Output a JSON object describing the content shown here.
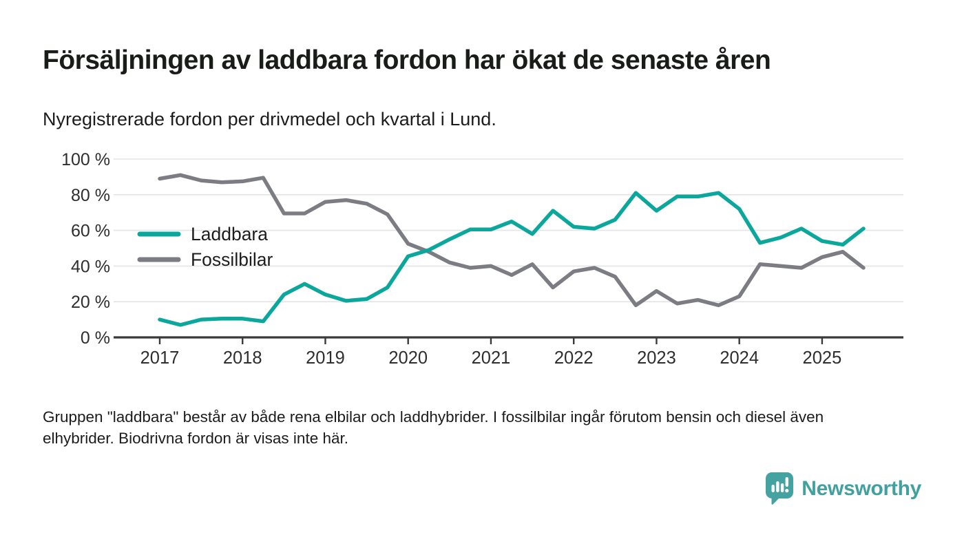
{
  "header": {
    "title": "Försäljningen av laddbara fordon har ökat de senaste åren",
    "subtitle": "Nyregistrerade fordon per drivmedel och kvartal i Lund."
  },
  "footer": {
    "note": "Gruppen \"laddbara\" består av både rena elbilar och laddhybrider. I fossilbilar ingår förutom bensin och diesel även elhybrider. Biodrivna fordon är visas inte här."
  },
  "branding": {
    "logo_text": "Newsworthy",
    "logo_icon": "bar-chart-speech-bubble-icon",
    "brand_color": "#44a2a0"
  },
  "chart_data": {
    "type": "line",
    "title": "Nyregistrerade fordon per drivmedel och kvartal i Lund",
    "x_unit": "kvartal",
    "y_unit": "%",
    "ylim": [
      0,
      100
    ],
    "grid": true,
    "legend_position": "inside-left",
    "colors": {
      "grid": "#e4e4e4",
      "axis": "#3a3a3a",
      "tick_text": "#2e2e2e",
      "legend_text": "#1d1d1d"
    },
    "yticks": [
      0,
      20,
      40,
      60,
      80,
      100
    ],
    "y_tick_labels": [
      "0 %",
      "20 %",
      "40 %",
      "60 %",
      "80 %",
      "100 %"
    ],
    "x_tick_labels": [
      "2017",
      "2018",
      "2019",
      "2020",
      "2021",
      "2022",
      "2023",
      "2024",
      "2025"
    ],
    "quarters": [
      "2017 Q1",
      "2017 Q2",
      "2017 Q3",
      "2017 Q4",
      "2018 Q1",
      "2018 Q2",
      "2018 Q3",
      "2018 Q4",
      "2019 Q1",
      "2019 Q2",
      "2019 Q3",
      "2019 Q4",
      "2020 Q1",
      "2020 Q2",
      "2020 Q3",
      "2020 Q4",
      "2021 Q1",
      "2021 Q2",
      "2021 Q3",
      "2021 Q4",
      "2022 Q1",
      "2022 Q2",
      "2022 Q3",
      "2022 Q4",
      "2023 Q1",
      "2023 Q2",
      "2023 Q3",
      "2023 Q4",
      "2024 Q1",
      "2024 Q2",
      "2024 Q3",
      "2024 Q4",
      "2025 Q1",
      "2025 Q2",
      "2025 Q3"
    ],
    "series": [
      {
        "name": "Laddbara",
        "color": "#0ca79c",
        "values": [
          10,
          7,
          10,
          10.5,
          10.5,
          9,
          24,
          30,
          24,
          20.5,
          21.5,
          28,
          45.5,
          49,
          55,
          60.5,
          60.5,
          65,
          58,
          71,
          62,
          61,
          66,
          81,
          71,
          79,
          79,
          81,
          72,
          53,
          56,
          61,
          54,
          52,
          61
        ]
      },
      {
        "name": "Fossilbilar",
        "color": "#7c7c83",
        "values": [
          89,
          91,
          88,
          87,
          87.5,
          89.5,
          69.5,
          69.5,
          76,
          77,
          75,
          69,
          52.5,
          48,
          42,
          39,
          40,
          35,
          41,
          28,
          37,
          39,
          34,
          18,
          26,
          19,
          21,
          18,
          23,
          41,
          40,
          39,
          45,
          48,
          39
        ]
      }
    ]
  }
}
